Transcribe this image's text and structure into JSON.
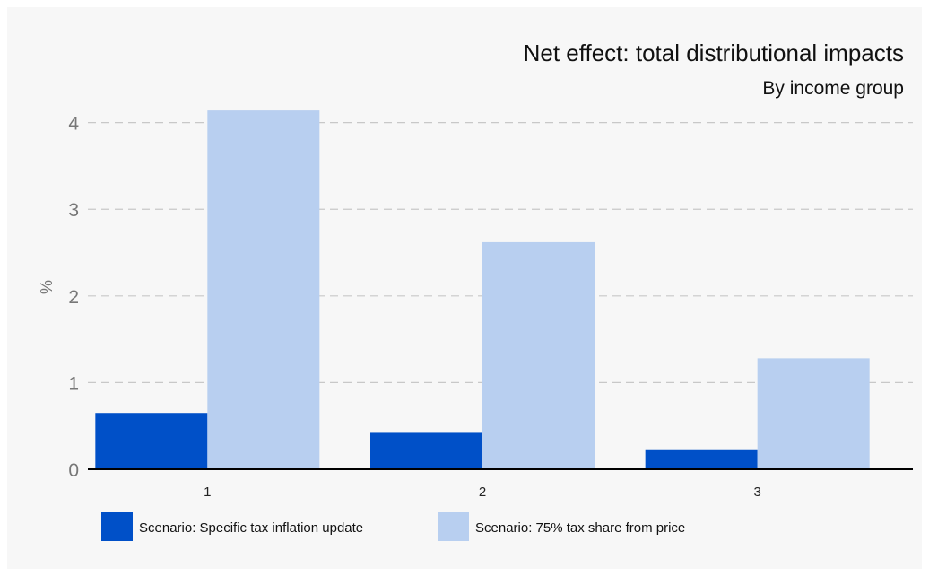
{
  "chart_data": {
    "type": "bar",
    "title": "Net effect: total distributional impacts",
    "subtitle": "By income group",
    "xlabel": "",
    "ylabel": "%",
    "categories": [
      "1",
      "2",
      "3"
    ],
    "ylim": [
      0,
      4.4
    ],
    "yticks": [
      0,
      1,
      2,
      3,
      4
    ],
    "grid": true,
    "legend_position": "bottom-left",
    "series": [
      {
        "name": "Scenario: Specific tax inflation update",
        "color": "#0050c8",
        "values": [
          0.65,
          0.42,
          0.22
        ]
      },
      {
        "name": "Scenario: 75% tax share from price",
        "color": "#b8cff0",
        "values": [
          4.14,
          2.62,
          1.28
        ]
      }
    ]
  }
}
